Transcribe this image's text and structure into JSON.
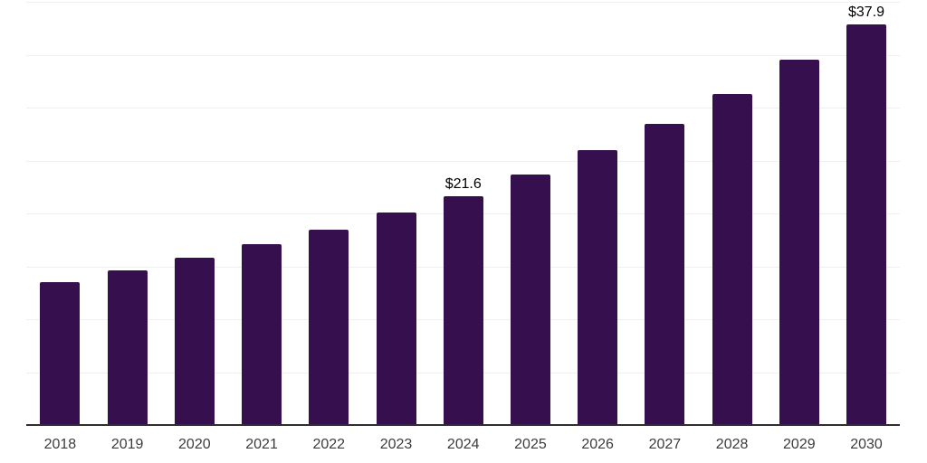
{
  "chart_data": {
    "type": "bar",
    "title": "",
    "xlabel": "",
    "ylabel": "",
    "categories": [
      "2018",
      "2019",
      "2020",
      "2021",
      "2022",
      "2023",
      "2024",
      "2025",
      "2026",
      "2027",
      "2028",
      "2029",
      "2030"
    ],
    "values": [
      13.5,
      14.6,
      15.8,
      17.1,
      18.5,
      20.1,
      21.6,
      23.7,
      26.0,
      28.5,
      31.3,
      34.5,
      37.9
    ],
    "data_labels": [
      "",
      "",
      "",
      "",
      "",
      "",
      "$21.6",
      "",
      "",
      "",
      "",
      "",
      "$37.9"
    ],
    "value_prefix": "$",
    "ylim": [
      0,
      40
    ],
    "gridline_step": 5,
    "grid": true,
    "legend_position": "none",
    "colors": {
      "bar": "#36104E",
      "axis_line": "#2E2E2E",
      "gridline": "#F0F0F0",
      "tick_label": "#3C3C3C",
      "data_label": "#000000",
      "background": "#FFFFFF"
    }
  }
}
